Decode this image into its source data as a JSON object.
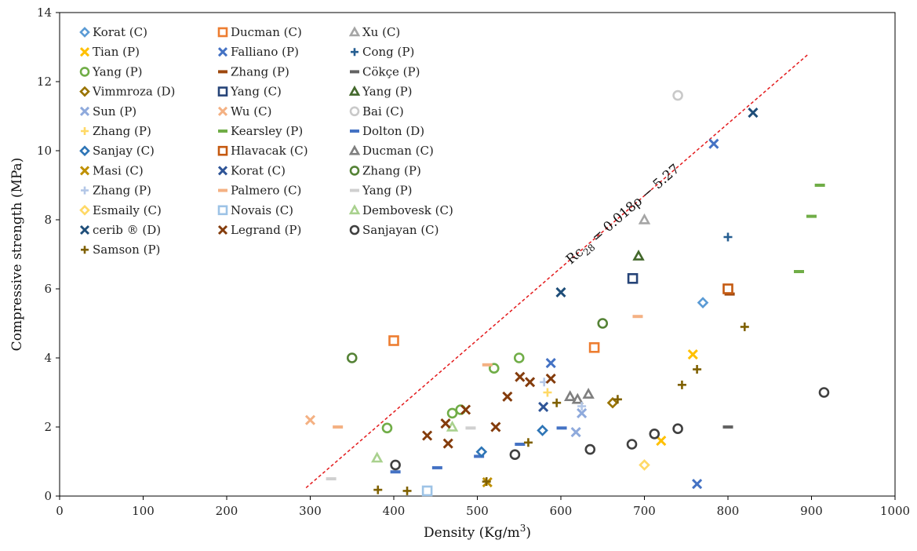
{
  "chart_data": {
    "type": "scatter",
    "xlabel": "Density (Kg/m",
    "xlabel_sup": "3",
    "xlabel_tail": ")",
    "ylabel": "Compressive strength (MPa)",
    "xlim": [
      0,
      1000
    ],
    "ylim": [
      0,
      14
    ],
    "xticks": [
      0,
      100,
      200,
      300,
      400,
      500,
      600,
      700,
      800,
      900,
      1000
    ],
    "yticks": [
      0,
      2,
      4,
      6,
      8,
      10,
      12,
      14
    ],
    "grid": false,
    "legend_position": "top-left",
    "annotation": {
      "text_prefix": "Rc",
      "text_sub": "28",
      "text_suffix": " = 0.018ρ − 5.27",
      "line_color": "#e31a1c",
      "line": [
        [
          295,
          0.24
        ],
        [
          895,
          12.77
        ]
      ]
    },
    "series": [
      {
        "name": "Korat (C)",
        "marker": "diamond",
        "color": "#5b9bd5",
        "points": [
          [
            770,
            5.6
          ]
        ]
      },
      {
        "name": "Ducman (C)",
        "marker": "square",
        "color": "#ed7d31",
        "points": [
          [
            400,
            4.5
          ],
          [
            640,
            4.3
          ]
        ]
      },
      {
        "name": "Xu (C)",
        "marker": "triangle",
        "color": "#a5a5a5",
        "points": [
          [
            700,
            8.0
          ]
        ]
      },
      {
        "name": "Tian (P)",
        "marker": "x",
        "color": "#ffc000",
        "points": [
          [
            758,
            4.1
          ],
          [
            720,
            1.6
          ]
        ]
      },
      {
        "name": "Falliano (P)",
        "marker": "x",
        "color": "#4472c4",
        "points": [
          [
            783,
            10.2
          ],
          [
            588,
            3.85
          ],
          [
            763,
            0.35
          ]
        ]
      },
      {
        "name": "Cong (P)",
        "marker": "plus",
        "color": "#255e91",
        "points": [
          [
            800,
            7.5
          ]
        ]
      },
      {
        "name": "Yang (P)",
        "marker": "circle",
        "color": "#70ad47",
        "points": [
          [
            550,
            4.0
          ],
          [
            392,
            1.97
          ],
          [
            470,
            2.4
          ],
          [
            480,
            2.5
          ],
          [
            520,
            3.7
          ]
        ]
      },
      {
        "name": "Zhang (P)",
        "marker": "dash",
        "color": "#9e480e",
        "points": [
          [
            802,
            5.85
          ]
        ]
      },
      {
        "name": "Cökçe (P)",
        "marker": "dash",
        "color": "#636363",
        "points": [
          [
            800,
            2.0
          ]
        ]
      },
      {
        "name": "Vimmroza (D)",
        "marker": "diamond",
        "color": "#997300",
        "points": [
          [
            662,
            2.7
          ]
        ]
      },
      {
        "name": "Yang (C)",
        "marker": "square",
        "color": "#264478",
        "points": [
          [
            686,
            6.3
          ]
        ]
      },
      {
        "name": "Yang (P)",
        "marker": "triangle",
        "color": "#43682b",
        "points": [
          [
            693,
            6.95
          ]
        ]
      },
      {
        "name": "Sun (P)",
        "marker": "x",
        "color": "#8faadc",
        "points": [
          [
            625,
            2.4
          ],
          [
            618,
            1.85
          ]
        ]
      },
      {
        "name": "Wu (C)",
        "marker": "x",
        "color": "#f4b183",
        "points": [
          [
            300,
            2.2
          ]
        ]
      },
      {
        "name": "Bai (C)",
        "marker": "circle",
        "color": "#c9c9c9",
        "points": [
          [
            740,
            11.6
          ]
        ]
      },
      {
        "name": "Zhang (P)",
        "marker": "plus",
        "color": "#ffd966",
        "points": [
          [
            584,
            3.0
          ]
        ]
      },
      {
        "name": "Kearsley (P)",
        "marker": "dash",
        "color": "#70ad47",
        "points": [
          [
            910,
            9.0
          ],
          [
            900,
            8.1
          ],
          [
            885,
            6.5
          ]
        ]
      },
      {
        "name": "Dolton (D)",
        "marker": "dash",
        "color": "#4472c4",
        "points": [
          [
            402,
            0.7
          ],
          [
            452,
            0.82
          ],
          [
            502,
            1.15
          ],
          [
            551,
            1.5
          ],
          [
            601,
            1.97
          ]
        ]
      },
      {
        "name": "Sanjay (C)",
        "marker": "diamond",
        "color": "#2e75b6",
        "points": [
          [
            505,
            1.28
          ],
          [
            578,
            1.9
          ]
        ]
      },
      {
        "name": "Hlavacak (C)",
        "marker": "square",
        "color": "#c55a11",
        "points": [
          [
            800,
            6.0
          ]
        ]
      },
      {
        "name": "Ducman (C)",
        "marker": "triangle",
        "color": "#7f7f7f",
        "points": [
          [
            611,
            2.88
          ],
          [
            620,
            2.8
          ],
          [
            633,
            2.95
          ]
        ]
      },
      {
        "name": "Masi (C)",
        "marker": "x",
        "color": "#bf9000",
        "points": [
          [
            512,
            0.4
          ]
        ]
      },
      {
        "name": "Korat (C)",
        "marker": "x",
        "color": "#2f5597",
        "points": [
          [
            579,
            2.58
          ]
        ]
      },
      {
        "name": "Zhang (P)",
        "marker": "circle",
        "color": "#548235",
        "points": [
          [
            350,
            4.0
          ],
          [
            650,
            5.0
          ]
        ]
      },
      {
        "name": "Zhang (P)",
        "marker": "plus",
        "color": "#b4c7e7",
        "points": [
          [
            580,
            3.3
          ],
          [
            625,
            2.6
          ]
        ]
      },
      {
        "name": "Palmero (C)",
        "marker": "dash",
        "color": "#f4b183",
        "points": [
          [
            333,
            2.0
          ],
          [
            512,
            3.8
          ],
          [
            692,
            5.2
          ]
        ]
      },
      {
        "name": "Yang (P)",
        "marker": "dash",
        "color": "#d0d0d0",
        "points": [
          [
            325,
            0.5
          ],
          [
            492,
            1.97
          ]
        ]
      },
      {
        "name": "Esmaily (C)",
        "marker": "diamond",
        "color": "#ffd966",
        "points": [
          [
            700,
            0.9
          ]
        ]
      },
      {
        "name": "Novais (C)",
        "marker": "square",
        "color": "#9dc3e6",
        "points": [
          [
            440,
            0.15
          ]
        ]
      },
      {
        "name": "Dembovesk(C)",
        "display": "Dembovesk (C)",
        "marker": "triangle",
        "color": "#a9d18e",
        "points": [
          [
            380,
            1.1
          ],
          [
            470,
            2.0
          ]
        ]
      },
      {
        "name": "cerib ® (D)",
        "marker": "x",
        "color": "#1f4e79",
        "points": [
          [
            600,
            5.9
          ],
          [
            830,
            11.1
          ]
        ]
      },
      {
        "name": "Legrand (P)",
        "marker": "x",
        "color": "#843c0c",
        "points": [
          [
            440,
            1.75
          ],
          [
            462,
            2.1
          ],
          [
            465,
            1.52
          ],
          [
            486,
            2.5
          ],
          [
            522,
            2.0
          ],
          [
            536,
            2.88
          ],
          [
            551,
            3.45
          ],
          [
            563,
            3.3
          ],
          [
            588,
            3.4
          ]
        ]
      },
      {
        "name": "Sanjayan (C)",
        "marker": "circle",
        "color": "#404040",
        "points": [
          [
            402,
            0.9
          ],
          [
            545,
            1.2
          ],
          [
            635,
            1.35
          ],
          [
            685,
            1.5
          ],
          [
            712,
            1.8
          ],
          [
            740,
            1.95
          ],
          [
            915,
            3.0
          ]
        ]
      },
      {
        "name": "Samson (P)",
        "marker": "plus",
        "color": "#7f6000",
        "points": [
          [
            381,
            0.18
          ],
          [
            416,
            0.15
          ],
          [
            511,
            0.42
          ],
          [
            561,
            1.55
          ],
          [
            595,
            2.7
          ],
          [
            668,
            2.8
          ],
          [
            745,
            3.22
          ],
          [
            763,
            3.67
          ],
          [
            820,
            4.9
          ]
        ]
      }
    ]
  }
}
